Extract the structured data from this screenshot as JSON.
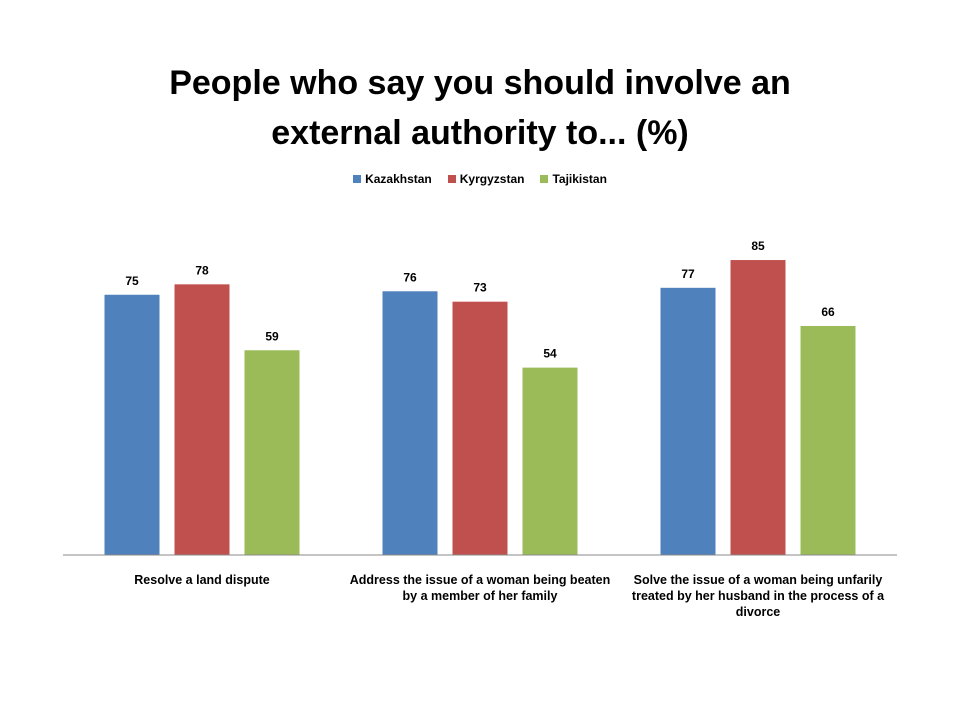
{
  "chart_data": {
    "type": "bar",
    "title": "People who say you should involve an external authority to... (%)",
    "categories": [
      "Resolve a land dispute",
      "Address the issue of a woman being beaten by a member of her family",
      "Solve the issue of a woman being unfarily treated by her husband in the process of a divorce"
    ],
    "series": [
      {
        "name": "Kazakhstan",
        "color": "#4f81bd",
        "values": [
          75,
          76,
          77
        ]
      },
      {
        "name": "Kyrgyzstan",
        "color": "#c0504d",
        "values": [
          78,
          73,
          85
        ]
      },
      {
        "name": "Tajikistan",
        "color": "#9bbb59",
        "values": [
          59,
          54,
          66
        ]
      }
    ],
    "ylim": [
      0,
      100
    ],
    "legend": "top"
  }
}
